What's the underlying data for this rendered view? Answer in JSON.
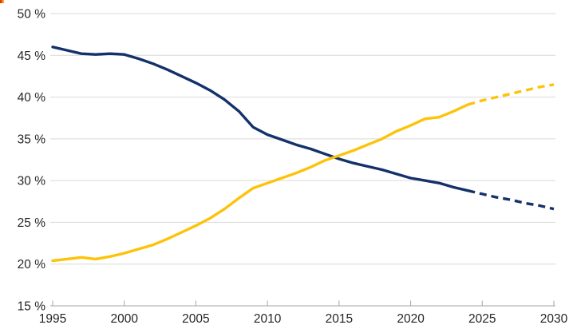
{
  "page": {
    "background": "#ffffff"
  },
  "decoration": {
    "corner_mark": "red-orange-sliver"
  },
  "chart_data": {
    "type": "line",
    "title": "",
    "subtitle": "",
    "xlabel": "",
    "ylabel": "",
    "xlim": [
      1995,
      2030
    ],
    "ylim": [
      15,
      50
    ],
    "x_ticks": [
      1995,
      2000,
      2005,
      2010,
      2015,
      2020,
      2025,
      2030
    ],
    "y_ticks": [
      15,
      20,
      25,
      30,
      35,
      40,
      45,
      50
    ],
    "y_tick_suffix": " %",
    "grid": "horizontal",
    "legend_position": "none",
    "colors": {
      "navy": "#14316b",
      "yellow": "#fdc30a",
      "gridline": "#d9d9d9",
      "axis": "#a6a6a6",
      "tick_label": "#262626"
    },
    "series": [
      {
        "name": "declining-share-actual",
        "color": "#14316b",
        "style": "solid",
        "x": [
          1995,
          1996,
          1997,
          1998,
          1999,
          2000,
          2001,
          2002,
          2003,
          2004,
          2005,
          2006,
          2007,
          2008,
          2009,
          2010,
          2011,
          2012,
          2013,
          2014,
          2015,
          2016,
          2017,
          2018,
          2019,
          2020,
          2021,
          2022,
          2023,
          2024
        ],
        "values": [
          46.0,
          45.6,
          45.2,
          45.1,
          45.2,
          45.1,
          44.6,
          44.0,
          43.3,
          42.5,
          41.7,
          40.8,
          39.7,
          38.3,
          36.4,
          35.5,
          34.9,
          34.3,
          33.8,
          33.2,
          32.6,
          32.1,
          31.7,
          31.3,
          30.8,
          30.3,
          30.0,
          29.7,
          29.2,
          28.8
        ]
      },
      {
        "name": "declining-share-forecast",
        "color": "#14316b",
        "style": "dashed",
        "x": [
          2024,
          2025,
          2026,
          2027,
          2028,
          2029,
          2030
        ],
        "values": [
          28.8,
          28.4,
          28.0,
          27.7,
          27.3,
          27.0,
          26.6
        ]
      },
      {
        "name": "rising-share-actual",
        "color": "#fdc30a",
        "style": "solid",
        "x": [
          1995,
          1996,
          1997,
          1998,
          1999,
          2000,
          2001,
          2002,
          2003,
          2004,
          2005,
          2006,
          2007,
          2008,
          2009,
          2010,
          2011,
          2012,
          2013,
          2014,
          2015,
          2016,
          2017,
          2018,
          2019,
          2020,
          2021,
          2022,
          2023,
          2024
        ],
        "values": [
          20.4,
          20.6,
          20.8,
          20.6,
          20.9,
          21.3,
          21.8,
          22.3,
          23.0,
          23.8,
          24.6,
          25.5,
          26.6,
          27.9,
          29.1,
          29.7,
          30.3,
          30.9,
          31.6,
          32.4,
          33.0,
          33.6,
          34.3,
          35.0,
          35.9,
          36.6,
          37.4,
          37.6,
          38.3,
          39.1
        ]
      },
      {
        "name": "rising-share-forecast",
        "color": "#fdc30a",
        "style": "dashed",
        "x": [
          2024,
          2025,
          2026,
          2027,
          2028,
          2029,
          2030
        ],
        "values": [
          39.1,
          39.6,
          40.0,
          40.4,
          40.8,
          41.2,
          41.5
        ]
      }
    ]
  }
}
